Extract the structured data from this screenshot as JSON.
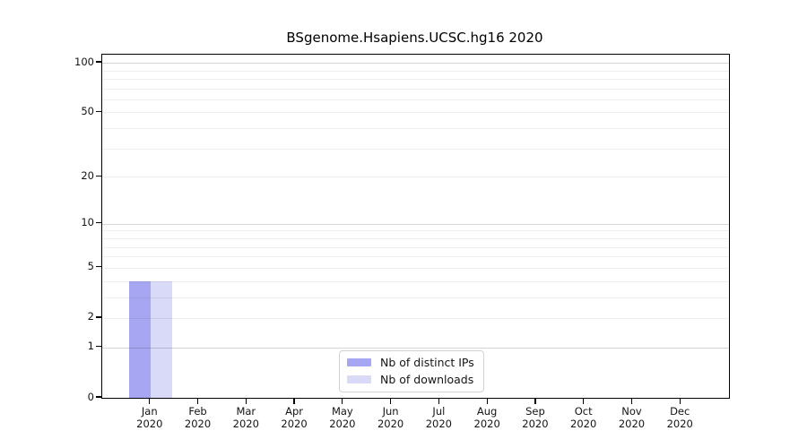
{
  "title": "BSgenome.Hsapiens.UCSC.hg16 2020",
  "chart_data": {
    "type": "bar",
    "title": "BSgenome.Hsapiens.UCSC.hg16 2020",
    "xlabel": "",
    "ylabel": "",
    "yscale": "log1p",
    "ylim": [
      0,
      112
    ],
    "categories": [
      "Jan",
      "Feb",
      "Mar",
      "Apr",
      "May",
      "Jun",
      "Jul",
      "Aug",
      "Sep",
      "Oct",
      "Nov",
      "Dec"
    ],
    "category_year": "2020",
    "series": [
      {
        "name": "Nb of distinct IPs",
        "color": "#a6a6f2",
        "values": [
          4,
          0,
          0,
          0,
          0,
          0,
          0,
          0,
          0,
          0,
          0,
          0
        ]
      },
      {
        "name": "Nb of downloads",
        "color": "#d9d9f8",
        "values": [
          4,
          0,
          0,
          0,
          0,
          0,
          0,
          0,
          0,
          0,
          0,
          0
        ]
      }
    ],
    "ytick_values": [
      0,
      1,
      2,
      5,
      10,
      20,
      50,
      100
    ],
    "ygrid_major": [
      1,
      10,
      100
    ],
    "ygrid_minor": [
      2,
      3,
      4,
      5,
      6,
      7,
      8,
      9,
      20,
      30,
      40,
      50,
      60,
      70,
      80,
      90
    ],
    "grid_color_major": "rgba(0,0,0,0.16)",
    "grid_color_minor": "rgba(0,0,0,0.065)",
    "legend_position": "bottom-center"
  }
}
